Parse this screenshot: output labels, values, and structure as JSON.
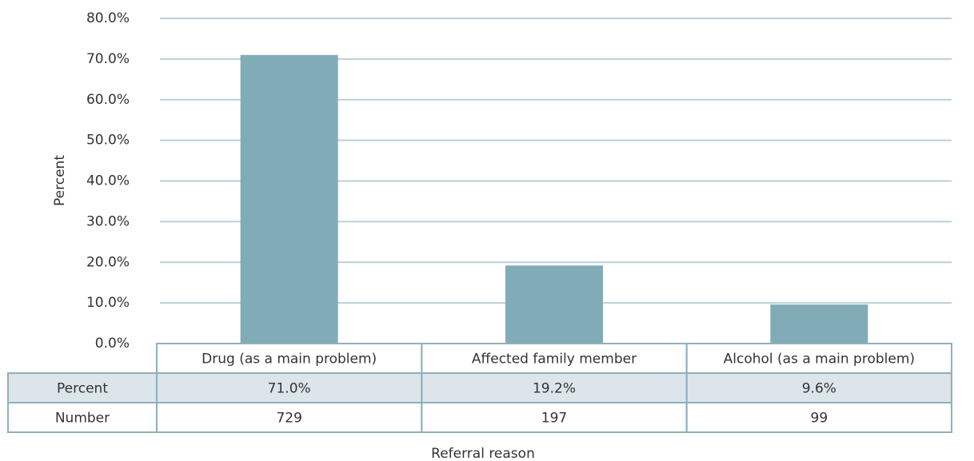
{
  "chart_data": {
    "type": "bar",
    "y_label": "Percent",
    "x_label": "Referral reason",
    "categories": [
      "Drug (as a main problem)",
      "Affected family member",
      "Alcohol (as a main problem)"
    ],
    "values": [
      71.0,
      19.2,
      9.6
    ],
    "value_labels": [
      "71.0%",
      "19.2%",
      "9.6%"
    ],
    "row_labels": [
      "Percent",
      "Number"
    ],
    "counts": [
      729,
      197,
      99
    ],
    "color": "#82abb8",
    "ylim": [
      0,
      80
    ],
    "yticks": [
      {
        "value": 0,
        "label": "0.0%"
      },
      {
        "value": 10,
        "label": "10.0%"
      },
      {
        "value": 20,
        "label": "20.0%"
      },
      {
        "value": 30,
        "label": "30.0%"
      },
      {
        "value": 40,
        "label": "40.0%"
      },
      {
        "value": 50,
        "label": "50.0%"
      },
      {
        "value": 60,
        "label": "60.0%"
      },
      {
        "value": 70,
        "label": "70.0%"
      },
      {
        "value": 80,
        "label": "80.0%"
      }
    ],
    "grid": true
  }
}
